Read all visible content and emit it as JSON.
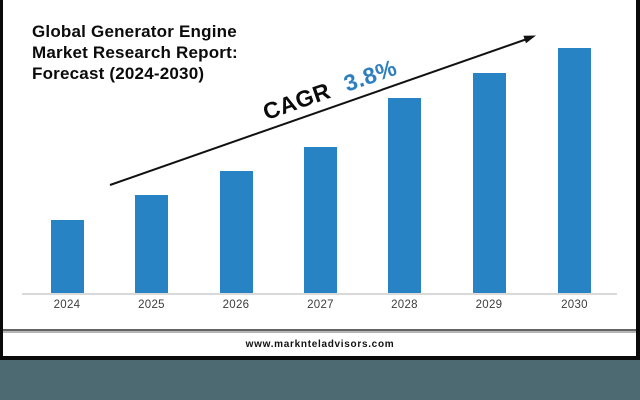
{
  "title": {
    "lines": [
      "Global Generator Engine",
      "Market Research Report:",
      "Forecast (2024-2030)"
    ]
  },
  "cagr": {
    "label": "CAGR",
    "value": "3.8%",
    "label_color": "#0b0b0b",
    "value_color": "#2e7fc0"
  },
  "chart_data": {
    "type": "bar",
    "title": "Global Generator Engine Market Research Report: Forecast (2024-2030)",
    "categories": [
      "2024",
      "2025",
      "2026",
      "2027",
      "2028",
      "2029",
      "2030"
    ],
    "values": [
      73,
      98,
      122,
      146,
      195,
      220,
      245
    ],
    "units": "relative bar height in px (chart shows no y-axis scale)",
    "annotation": "CAGR 3.8%",
    "bar_color": "#2883c5",
    "xlabel": "",
    "ylabel": "",
    "grid": false,
    "legend": false,
    "axis_line_color": "#d9d9d9",
    "trend_arrow": "rising left-to-right, black"
  },
  "footer": {
    "website": "www.marknteladvisors.com"
  },
  "colors": {
    "page_background": "#ffffff",
    "frame_border": "#0a0a0a",
    "outside_background": "#4d6971"
  }
}
